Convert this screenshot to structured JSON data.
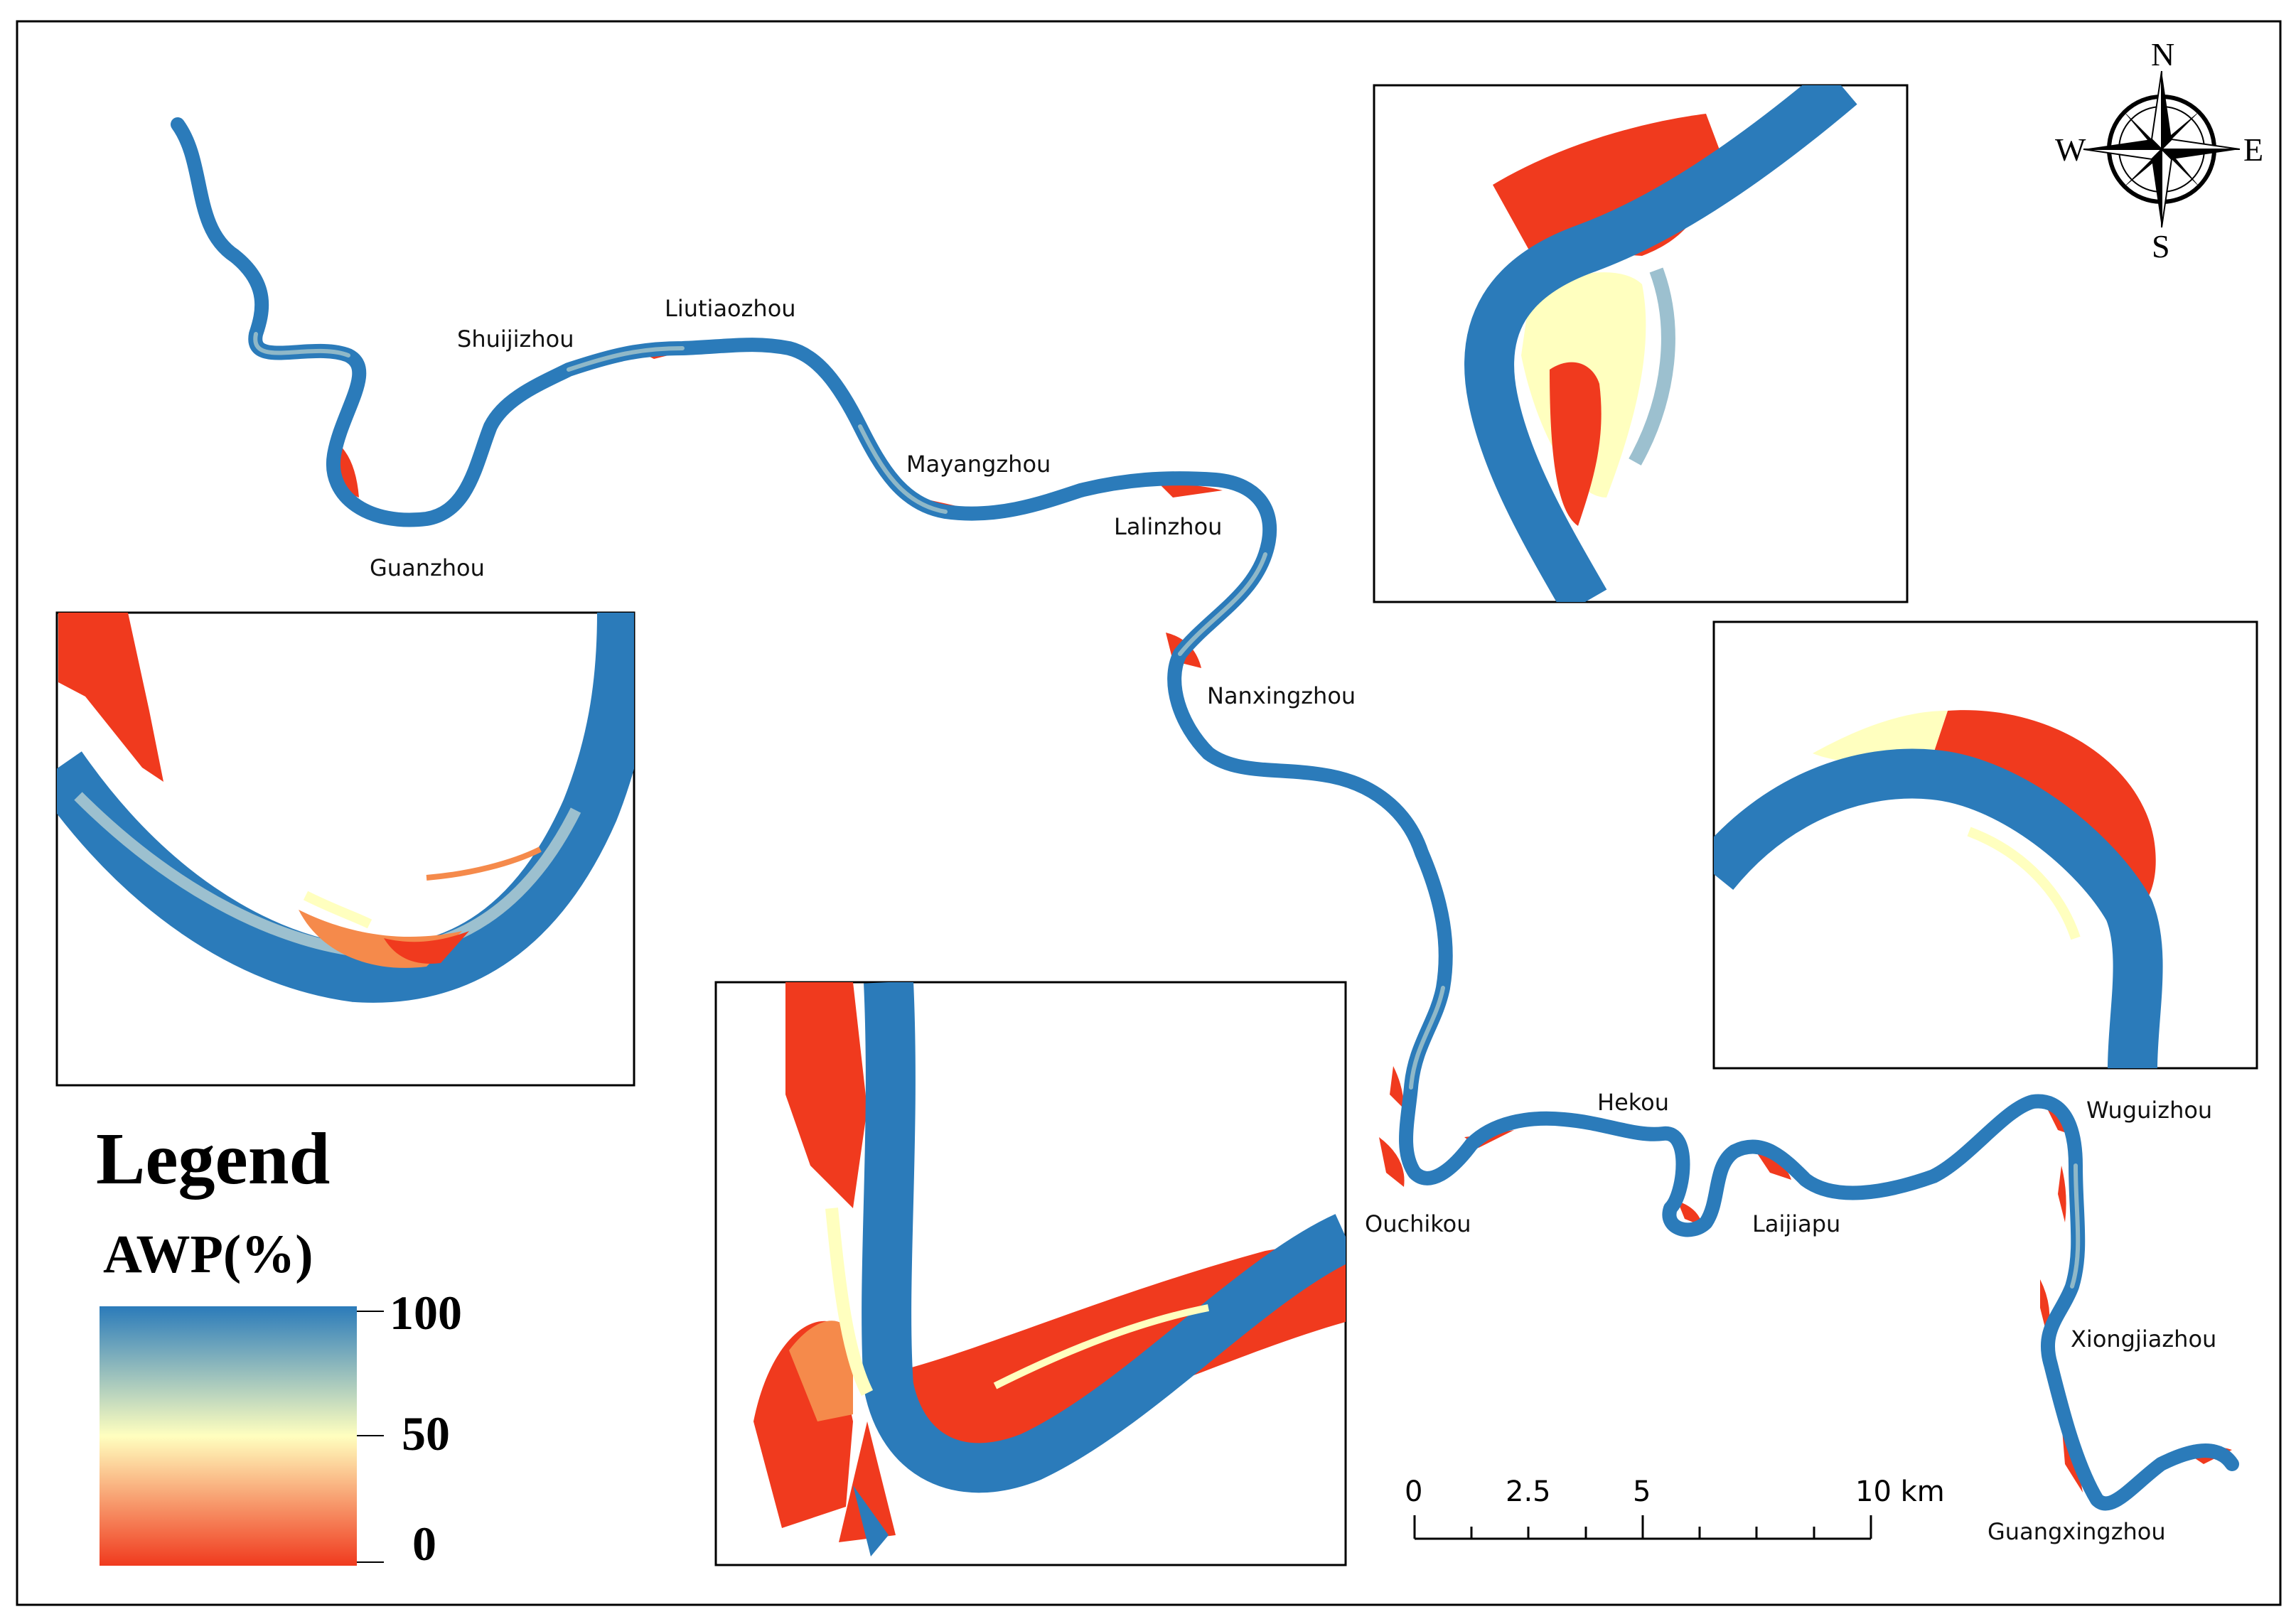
{
  "places": [
    {
      "id": "guanzhou",
      "label": "Guanzhou"
    },
    {
      "id": "shuijizhou",
      "label": "Shuijizhou"
    },
    {
      "id": "liutiaozhou",
      "label": "Liutiaozhou"
    },
    {
      "id": "mayangzhou",
      "label": "Mayangzhou"
    },
    {
      "id": "lalinzhou",
      "label": "Lalinzhou"
    },
    {
      "id": "nanxingzhou",
      "label": "Nanxingzhou"
    },
    {
      "id": "hekou",
      "label": "Hekou"
    },
    {
      "id": "ouchikou",
      "label": "Ouchikou"
    },
    {
      "id": "laijiapu",
      "label": "Laijiapu"
    },
    {
      "id": "wuguizhou",
      "label": "Wuguizhou"
    },
    {
      "id": "xiongjiazhou",
      "label": "Xiongjiazhou"
    },
    {
      "id": "guangxingzhou",
      "label": "Guangxingzhou"
    }
  ],
  "legend": {
    "title": "Legend",
    "variable": "AWP(%)",
    "ticks": [
      "100",
      "50",
      "0"
    ],
    "colors": {
      "high": "#2b7bba",
      "mid": "#ffffbf",
      "low": "#f03a1e"
    }
  },
  "compass": {
    "n": "N",
    "s": "S",
    "e": "E",
    "w": "W"
  },
  "scale_bar": {
    "labels": [
      "0",
      "2.5",
      "5",
      "10 km"
    ]
  }
}
